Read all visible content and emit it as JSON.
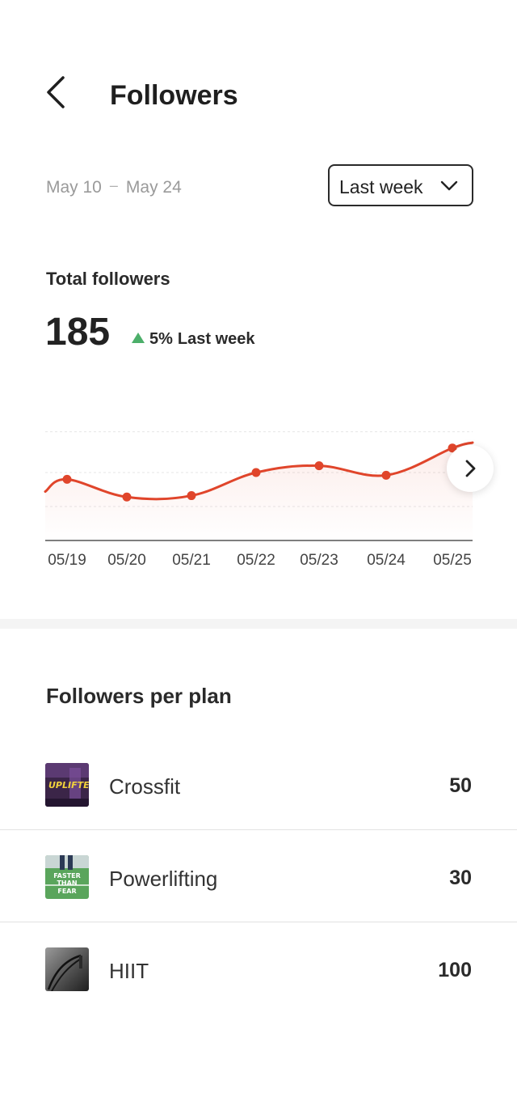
{
  "header": {
    "title": "Followers",
    "back_icon": "chevron-left-icon"
  },
  "filter": {
    "date_from": "May 10",
    "date_sep": "–",
    "date_to": "May 24",
    "period": "Last week"
  },
  "summary": {
    "label": "Total followers",
    "total": "185",
    "delta_pct": "5%",
    "delta_period": "Last week",
    "delta_color": "#4caf6a"
  },
  "chart_data": {
    "type": "line",
    "x": [
      "05/19",
      "05/20",
      "05/21",
      "05/22",
      "05/23",
      "05/24",
      "05/25"
    ],
    "series": [
      {
        "values": [
          45,
          32,
          33,
          50,
          55,
          48,
          68
        ]
      }
    ],
    "ylim": [
      0,
      100
    ],
    "grid": true,
    "line_color": "#e0452b"
  },
  "plans": {
    "title": "Followers per plan",
    "items": [
      {
        "name": "Crossfit",
        "count": "50",
        "thumb_text": "UPLIFTED"
      },
      {
        "name": "Powerlifting",
        "count": "30",
        "thumb_text": "FASTER THAN FEAR"
      },
      {
        "name": "HIIT",
        "count": "100"
      }
    ]
  }
}
